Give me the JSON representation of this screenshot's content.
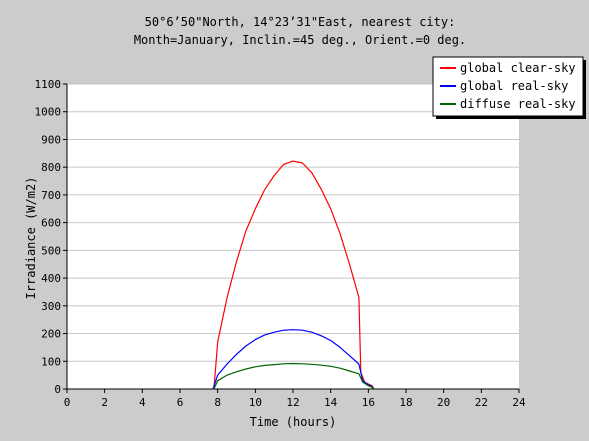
{
  "chart_data": {
    "type": "line",
    "title_lines": [
      "50°6’50\"North, 14°23’31\"East, nearest city:",
      "Month=January, Inclin.=45 deg., Orient.=0 deg."
    ],
    "xlabel": "Time (hours)",
    "ylabel": "Irradiance (W/m2)",
    "xlim": [
      0,
      24
    ],
    "ylim": [
      0,
      1100
    ],
    "xticks": [
      0,
      2,
      4,
      6,
      8,
      10,
      12,
      14,
      16,
      18,
      20,
      22,
      24
    ],
    "yticks": [
      0,
      100,
      200,
      300,
      400,
      500,
      600,
      700,
      800,
      900,
      1000,
      1100
    ],
    "grid": true,
    "legend_position": "top-right",
    "series": [
      {
        "name": "global clear-sky",
        "color": "#ff0000",
        "points": [
          [
            7.8,
            0
          ],
          [
            8.0,
            170
          ],
          [
            8.5,
            330
          ],
          [
            9.0,
            460
          ],
          [
            9.5,
            570
          ],
          [
            10.0,
            650
          ],
          [
            10.5,
            720
          ],
          [
            11.0,
            770
          ],
          [
            11.5,
            810
          ],
          [
            12.0,
            822
          ],
          [
            12.5,
            815
          ],
          [
            13.0,
            780
          ],
          [
            13.5,
            720
          ],
          [
            14.0,
            650
          ],
          [
            14.5,
            560
          ],
          [
            15.0,
            450
          ],
          [
            15.5,
            330
          ],
          [
            15.6,
            60
          ],
          [
            15.8,
            25
          ],
          [
            16.0,
            18
          ],
          [
            16.2,
            12
          ],
          [
            16.3,
            0
          ]
        ]
      },
      {
        "name": "global real-sky",
        "color": "#0000ff",
        "points": [
          [
            7.75,
            0
          ],
          [
            8.0,
            50
          ],
          [
            8.5,
            90
          ],
          [
            9.0,
            125
          ],
          [
            9.5,
            155
          ],
          [
            10.0,
            178
          ],
          [
            10.5,
            195
          ],
          [
            11.0,
            205
          ],
          [
            11.5,
            212
          ],
          [
            12.0,
            214
          ],
          [
            12.5,
            212
          ],
          [
            13.0,
            205
          ],
          [
            13.5,
            192
          ],
          [
            14.0,
            175
          ],
          [
            14.5,
            150
          ],
          [
            15.0,
            120
          ],
          [
            15.5,
            90
          ],
          [
            15.7,
            30
          ],
          [
            16.0,
            15
          ],
          [
            16.2,
            8
          ],
          [
            16.3,
            0
          ]
        ]
      },
      {
        "name": "diffuse real-sky",
        "color": "#006400",
        "points": [
          [
            7.8,
            0
          ],
          [
            8.0,
            30
          ],
          [
            8.5,
            50
          ],
          [
            9.0,
            62
          ],
          [
            9.5,
            72
          ],
          [
            10.0,
            80
          ],
          [
            10.5,
            85
          ],
          [
            11.0,
            88
          ],
          [
            11.5,
            91
          ],
          [
            12.0,
            92
          ],
          [
            12.5,
            91
          ],
          [
            13.0,
            89
          ],
          [
            13.5,
            86
          ],
          [
            14.0,
            82
          ],
          [
            14.5,
            75
          ],
          [
            15.0,
            65
          ],
          [
            15.5,
            55
          ],
          [
            15.7,
            25
          ],
          [
            16.0,
            12
          ],
          [
            16.2,
            6
          ],
          [
            16.3,
            0
          ]
        ]
      }
    ]
  }
}
